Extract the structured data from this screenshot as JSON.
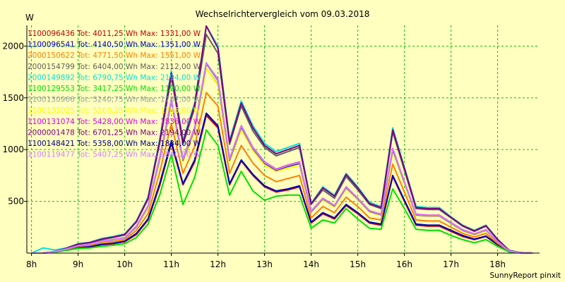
{
  "chart_data": {
    "type": "line",
    "title": "Wechselrichtervergleich vom 09.03.2018",
    "ylabel": "W",
    "xlabel": "",
    "credit": "SunnyReport pinxit",
    "xlim": [
      7.9,
      18.9
    ],
    "ylim": [
      0,
      2200
    ],
    "x_ticks": [
      8,
      9,
      10,
      11,
      12,
      13,
      14,
      15,
      16,
      17,
      18
    ],
    "x_tick_labels": [
      "8h",
      "9h",
      "10h",
      "11h",
      "12h",
      "13h",
      "14h",
      "15h",
      "16h",
      "17h",
      "18h"
    ],
    "y_ticks": [
      500,
      1000,
      1500,
      2000
    ],
    "y_tick_labels": [
      "500",
      "1000",
      "1500",
      "2000"
    ],
    "grid": true,
    "legend_position": "top-left",
    "x": [
      8.0,
      8.25,
      8.5,
      8.75,
      9.0,
      9.25,
      9.5,
      9.75,
      10.0,
      10.25,
      10.5,
      10.75,
      11.0,
      11.25,
      11.5,
      11.75,
      12.0,
      12.25,
      12.5,
      12.75,
      13.0,
      13.25,
      13.5,
      13.75,
      14.0,
      14.25,
      14.5,
      14.75,
      15.0,
      15.25,
      15.5,
      15.75,
      16.0,
      16.25,
      16.5,
      16.75,
      17.0,
      17.25,
      17.5,
      17.75,
      18.0,
      18.25,
      18.5,
      18.75
    ],
    "series": [
      {
        "name": "1100096436 Tot: 4011,25 Wh Max: 1331,00 W",
        "color": "#c00000",
        "values": [
          0,
          0,
          10,
          30,
          55,
          60,
          80,
          90,
          110,
          180,
          320,
          650,
          1060,
          660,
          880,
          1331,
          1210,
          660,
          890,
          750,
          640,
          590,
          610,
          640,
          290,
          380,
          330,
          460,
          380,
          290,
          270,
          740,
          500,
          270,
          260,
          260,
          210,
          160,
          130,
          160,
          80,
          15,
          3,
          0
        ]
      },
      {
        "name": "1100096541 Tot: 4140,50 Wh Max: 1351,00 W",
        "color": "#0000c0",
        "values": [
          0,
          0,
          10,
          30,
          55,
          65,
          85,
          95,
          115,
          190,
          330,
          670,
          1080,
          670,
          900,
          1351,
          1230,
          670,
          900,
          760,
          650,
          600,
          620,
          650,
          300,
          390,
          340,
          470,
          390,
          300,
          280,
          750,
          510,
          280,
          270,
          270,
          220,
          170,
          135,
          165,
          85,
          15,
          3,
          0
        ]
      },
      {
        "name": "2000150622 Tot: 4771,50 Wh Max: 1551,00 W",
        "color": "#ff8000",
        "values": [
          0,
          0,
          12,
          35,
          65,
          75,
          100,
          110,
          130,
          220,
          380,
          780,
          1250,
          770,
          1030,
          1551,
          1420,
          770,
          1040,
          870,
          750,
          690,
          720,
          750,
          340,
          450,
          390,
          540,
          450,
          340,
          320,
          860,
          590,
          320,
          310,
          310,
          250,
          190,
          155,
          190,
          95,
          18,
          4,
          0
        ]
      },
      {
        "name": "2000154799 Tot: 6404,00 Wh Max: 2112,00 W",
        "color": "#606060",
        "values": [
          0,
          0,
          15,
          45,
          85,
          100,
          130,
          150,
          175,
          300,
          520,
          1060,
          1700,
          1050,
          1400,
          2112,
          1930,
          1050,
          1420,
          1180,
          1020,
          940,
          980,
          1020,
          470,
          610,
          530,
          740,
          610,
          470,
          430,
          1170,
          800,
          430,
          420,
          420,
          340,
          260,
          210,
          260,
          130,
          25,
          5,
          0
        ]
      },
      {
        "name": "2000149892 Tot: 6790,75 Wh Max: 2194,00 W",
        "color": "#00e0e0",
        "values": [
          0,
          50,
          30,
          50,
          90,
          105,
          140,
          160,
          185,
          310,
          540,
          1100,
          1760,
          1090,
          1450,
          2194,
          2000,
          1090,
          1470,
          1230,
          1060,
          980,
          1020,
          1060,
          480,
          640,
          560,
          770,
          640,
          490,
          450,
          1210,
          830,
          450,
          440,
          440,
          350,
          270,
          220,
          270,
          135,
          25,
          5,
          0
        ]
      },
      {
        "name": "1100129553 Tot: 3417,25 Wh Max: 1190,00 W",
        "color": "#00e000",
        "values": [
          0,
          0,
          8,
          25,
          45,
          50,
          65,
          75,
          90,
          150,
          280,
          560,
          950,
          470,
          730,
          1190,
          1040,
          560,
          790,
          600,
          510,
          550,
          560,
          560,
          240,
          320,
          290,
          430,
          330,
          240,
          230,
          620,
          430,
          230,
          220,
          220,
          170,
          130,
          100,
          130,
          65,
          10,
          2,
          0
        ]
      },
      {
        "name": "1100130966 Tot: 5240,75 Wh Max: 1787,00 W",
        "color": "#a0a0a0",
        "values": [
          0,
          0,
          13,
          38,
          70,
          85,
          110,
          125,
          145,
          250,
          440,
          900,
          1440,
          890,
          1180,
          1787,
          1630,
          890,
          1200,
          1000,
          860,
          790,
          830,
          860,
          400,
          520,
          450,
          630,
          520,
          400,
          370,
          990,
          680,
          370,
          360,
          360,
          290,
          220,
          180,
          220,
          110,
          20,
          4,
          0
        ]
      },
      {
        "name": "1100131025 Tot: 5160,25 Wh Max: 1786,00 W",
        "color": "#ffff00",
        "values": [
          0,
          0,
          13,
          38,
          70,
          85,
          110,
          125,
          145,
          250,
          435,
          890,
          1430,
          880,
          1170,
          1786,
          1620,
          880,
          1190,
          990,
          850,
          790,
          820,
          850,
          395,
          515,
          445,
          620,
          515,
          395,
          365,
          980,
          670,
          365,
          355,
          355,
          285,
          215,
          175,
          215,
          108,
          20,
          4,
          0
        ]
      },
      {
        "name": "1100131074 Tot: 5428,00 Wh Max: 1836,00 W",
        "color": "#e000e0",
        "values": [
          0,
          0,
          14,
          40,
          72,
          88,
          115,
          130,
          150,
          260,
          455,
          920,
          1480,
          910,
          1210,
          1836,
          1680,
          910,
          1230,
          1020,
          880,
          810,
          850,
          880,
          405,
          530,
          460,
          640,
          530,
          410,
          375,
          1010,
          690,
          375,
          365,
          365,
          295,
          225,
          185,
          225,
          112,
          20,
          4,
          0
        ]
      },
      {
        "name": "2000001478 Tot: 6701,25 Wh Max: 2194,00 W",
        "color": "#800080",
        "values": [
          0,
          0,
          15,
          47,
          88,
          102,
          135,
          155,
          180,
          305,
          530,
          1080,
          1740,
          1070,
          1430,
          2194,
          1980,
          1070,
          1450,
          1210,
          1040,
          960,
          1000,
          1040,
          475,
          630,
          550,
          760,
          630,
          480,
          440,
          1190,
          820,
          440,
          430,
          430,
          345,
          265,
          215,
          265,
          132,
          25,
          5,
          0
        ]
      },
      {
        "name": "1100148421 Tot: 5358,00 Wh Max: 1834,00 W",
        "color": "#000080",
        "values": [
          0,
          0,
          14,
          40,
          71,
          87,
          113,
          128,
          148,
          255,
          450,
          910,
          1470,
          900,
          1200,
          1834,
          1670,
          900,
          1220,
          1010,
          870,
          800,
          840,
          870,
          400,
          525,
          455,
          635,
          525,
          405,
          370,
          1000,
          685,
          370,
          360,
          360,
          290,
          220,
          182,
          222,
          110,
          20,
          4,
          0
        ]
      },
      {
        "name": "1100119477 Tot: 5407,25 Wh Max: 1840,00 W",
        "color": "#d080ff",
        "values": [
          0,
          0,
          14,
          40,
          72,
          88,
          114,
          129,
          149,
          258,
          452,
          915,
          1475,
          905,
          1205,
          1840,
          1675,
          905,
          1225,
          1015,
          875,
          805,
          845,
          875,
          402,
          528,
          458,
          638,
          528,
          408,
          372,
          1005,
          688,
          372,
          362,
          362,
          292,
          222,
          183,
          223,
          111,
          20,
          4,
          0
        ]
      }
    ]
  }
}
